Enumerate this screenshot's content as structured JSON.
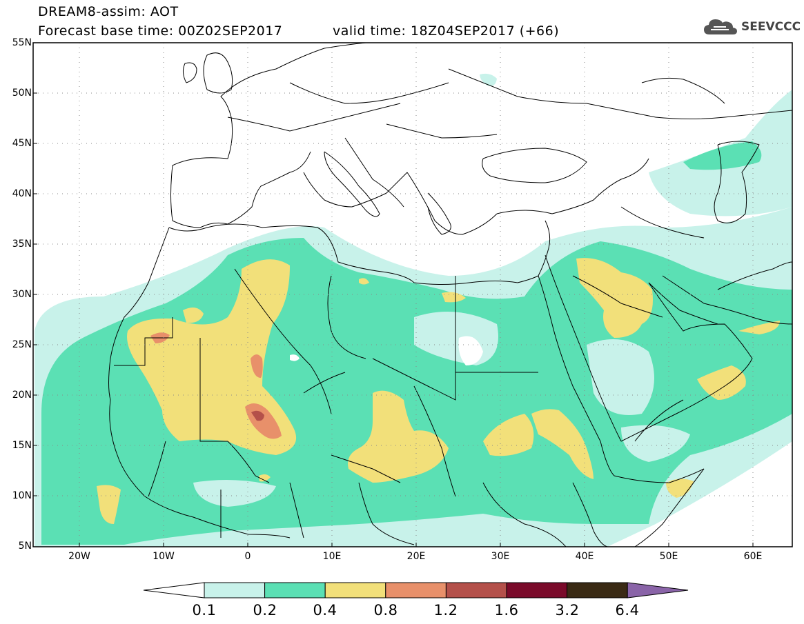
{
  "header": {
    "title": "DREAM8-assim: AOT",
    "base_time": "Forecast base time: 00Z02SEP2017",
    "valid_time": "valid time: 18Z04SEP2017 (+66)",
    "logo_text": "SEEVCCC"
  },
  "map": {
    "lat_labels": [
      "55N",
      "50N",
      "45N",
      "40N",
      "35N",
      "30N",
      "25N",
      "20N",
      "15N",
      "10N",
      "5N"
    ],
    "lon_labels": [
      "20W",
      "10W",
      "0",
      "10E",
      "20E",
      "30E",
      "40E",
      "50E",
      "60E"
    ],
    "lon_range": [
      -25,
      65
    ],
    "lat_range": [
      5,
      55
    ],
    "grid": "dotted"
  },
  "colorbar": {
    "levels": [
      "0.1",
      "0.2",
      "0.4",
      "0.8",
      "1.2",
      "1.6",
      "3.2",
      "6.4"
    ],
    "colors": [
      "#c8f2ea",
      "#5be0b4",
      "#f2e07a",
      "#e8906a",
      "#b4504a",
      "#7a0a2a",
      "#3a2a14",
      "#8a64a8"
    ],
    "under_color": "#ffffff"
  }
}
